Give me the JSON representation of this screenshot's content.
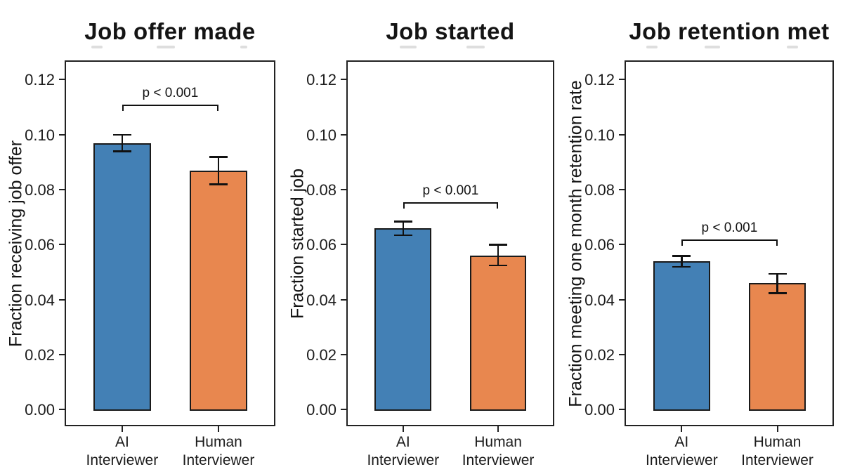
{
  "figure": {
    "background": "#ffffff",
    "text_color": "#141414"
  },
  "colors": {
    "ai_bar": "#4380B5",
    "human_bar": "#E8874F",
    "bar_edge": "#1a1a1a",
    "axis": "#222222"
  },
  "axes": {
    "ylim": [
      -0.006,
      0.127
    ],
    "ytick_values": [
      0,
      0.02,
      0.04,
      0.06,
      0.08,
      0.1,
      0.12
    ],
    "ytick_labels": [
      "0.00",
      "0.02",
      "0.04",
      "0.06",
      "0.08",
      "0.10",
      "0.12"
    ],
    "grid": false,
    "legend": "none"
  },
  "chart_data": [
    {
      "type": "bar",
      "title": "Job offer made",
      "ylabel": "Fraction receiving job offer",
      "categories": [
        [
          "AI",
          "Interviewer"
        ],
        [
          "Human",
          "Interviewer"
        ]
      ],
      "series": [
        {
          "name": "AI Interviewer",
          "value": 0.097,
          "ci": [
            0.094,
            0.1
          ],
          "color_key": "ai_bar"
        },
        {
          "name": "Human Interviewer",
          "value": 0.087,
          "ci": [
            0.082,
            0.092
          ],
          "color_key": "human_bar"
        }
      ],
      "significance": {
        "label": "p < 0.001",
        "bracket_y": 0.111
      }
    },
    {
      "type": "bar",
      "title": "Job started",
      "ylabel": "Fraction started job",
      "categories": [
        [
          "AI",
          "Interviewer"
        ],
        [
          "Human",
          "Interviewer"
        ]
      ],
      "series": [
        {
          "name": "AI Interviewer",
          "value": 0.066,
          "ci": [
            0.0635,
            0.0685
          ],
          "color_key": "ai_bar"
        },
        {
          "name": "Human Interviewer",
          "value": 0.056,
          "ci": [
            0.0525,
            0.06
          ],
          "color_key": "human_bar"
        }
      ],
      "significance": {
        "label": "p < 0.001",
        "bracket_y": 0.0755
      }
    },
    {
      "type": "bar",
      "title": "Job retention met",
      "ylabel": "Fraction meeting one month retention rate",
      "categories": [
        [
          "AI",
          "Interviewer"
        ],
        [
          "Human",
          "Interviewer"
        ]
      ],
      "series": [
        {
          "name": "AI Interviewer",
          "value": 0.054,
          "ci": [
            0.052,
            0.056
          ],
          "color_key": "ai_bar"
        },
        {
          "name": "Human Interviewer",
          "value": 0.046,
          "ci": [
            0.0425,
            0.0495
          ],
          "color_key": "human_bar"
        }
      ],
      "significance": {
        "label": "p < 0.001",
        "bracket_y": 0.062
      }
    }
  ]
}
